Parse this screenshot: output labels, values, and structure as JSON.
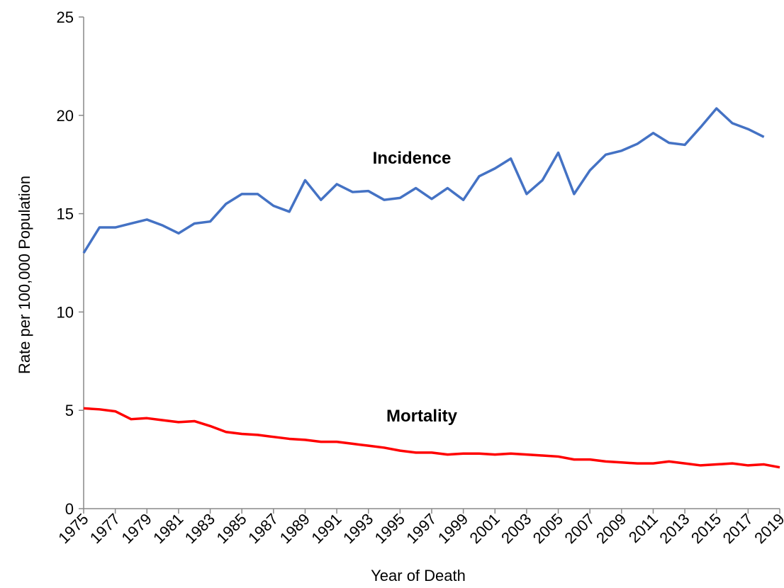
{
  "chart_data": {
    "type": "line",
    "x_label": "Year of Death",
    "y_label": "Rate per 100,000 Population",
    "x": [
      1975,
      1976,
      1977,
      1978,
      1979,
      1980,
      1981,
      1982,
      1983,
      1984,
      1985,
      1986,
      1987,
      1988,
      1989,
      1990,
      1991,
      1992,
      1993,
      1994,
      1995,
      1996,
      1997,
      1998,
      1999,
      2000,
      2001,
      2002,
      2003,
      2004,
      2005,
      2006,
      2007,
      2008,
      2009,
      2010,
      2011,
      2012,
      2013,
      2014,
      2015,
      2016,
      2017,
      2018,
      2019
    ],
    "series": [
      {
        "name": "Incidence",
        "color": "#4472c4",
        "values": [
          13.0,
          14.3,
          14.3,
          14.5,
          14.7,
          14.4,
          14.0,
          14.5,
          14.6,
          15.5,
          16.0,
          16.0,
          15.4,
          15.1,
          16.7,
          15.7,
          16.5,
          16.1,
          16.15,
          15.7,
          15.8,
          16.3,
          15.75,
          16.3,
          15.7,
          16.9,
          17.3,
          17.8,
          16.0,
          16.7,
          18.1,
          16.0,
          17.2,
          18.0,
          18.2,
          18.55,
          19.1,
          18.6,
          18.5,
          19.4,
          20.35,
          19.6,
          19.3,
          18.9,
          null
        ]
      },
      {
        "name": "Mortality",
        "color": "#ff0000",
        "values": [
          5.1,
          5.05,
          4.95,
          4.55,
          4.6,
          4.5,
          4.4,
          4.45,
          4.2,
          3.9,
          3.8,
          3.75,
          3.65,
          3.55,
          3.5,
          3.4,
          3.4,
          3.3,
          3.2,
          3.1,
          2.95,
          2.85,
          2.85,
          2.75,
          2.8,
          2.8,
          2.75,
          2.8,
          2.75,
          2.7,
          2.65,
          2.5,
          2.5,
          2.4,
          2.35,
          2.3,
          2.3,
          2.4,
          2.3,
          2.2,
          2.25,
          2.3,
          2.2,
          2.25,
          2.1
        ]
      }
    ],
    "xlim": [
      1975,
      2019
    ],
    "xticks": [
      1975,
      1977,
      1979,
      1981,
      1983,
      1985,
      1987,
      1989,
      1991,
      1993,
      1995,
      1997,
      1999,
      2001,
      2003,
      2005,
      2007,
      2009,
      2011,
      2013,
      2015,
      2017,
      2019
    ],
    "ylim": [
      0,
      25
    ],
    "yticks": [
      0,
      5,
      10,
      15,
      20,
      25
    ],
    "grid": false
  }
}
